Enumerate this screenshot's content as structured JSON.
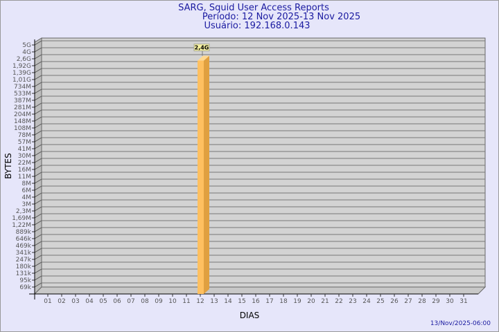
{
  "chart_data": {
    "type": "bar",
    "title": "SARG, Squid User Access Reports",
    "subtitle": [
      "Período: 12 Nov 2025-13 Nov 2025",
      "Usuário: 192.168.0.143"
    ],
    "xlabel": "DIAS",
    "ylabel": "BYTES",
    "y_scale": "log",
    "y_tick_labels": [
      "5G",
      "4G",
      "2,6G",
      "1,92G",
      "1,39G",
      "1,01G",
      "734M",
      "533M",
      "387M",
      "281M",
      "204M",
      "148M",
      "108M",
      "78M",
      "57M",
      "41M",
      "30M",
      "22M",
      "16M",
      "11M",
      "8M",
      "6M",
      "4M",
      "3M",
      "2,3M",
      "1,69M",
      "1,22M",
      "889k",
      "646k",
      "469k",
      "341k",
      "247k",
      "180k",
      "131k",
      "95k",
      "69k"
    ],
    "categories": [
      "01",
      "02",
      "03",
      "04",
      "05",
      "06",
      "07",
      "08",
      "09",
      "10",
      "11",
      "12",
      "13",
      "14",
      "15",
      "16",
      "17",
      "18",
      "19",
      "20",
      "21",
      "22",
      "23",
      "24",
      "25",
      "26",
      "27",
      "28",
      "29",
      "30",
      "31"
    ],
    "bars": [
      {
        "category": "12",
        "value": 2400000000,
        "label": "2,4G"
      }
    ],
    "grid": true,
    "colors": {
      "background": "#e6e6fa",
      "plot": "#d3d3d3",
      "bar": "#ffc060",
      "bar_side": "#e0a040",
      "label_box": "#f5f0a0",
      "title": "#1a1aa0"
    }
  },
  "footer": {
    "timestamp": "13/Nov/2025-06:00"
  }
}
